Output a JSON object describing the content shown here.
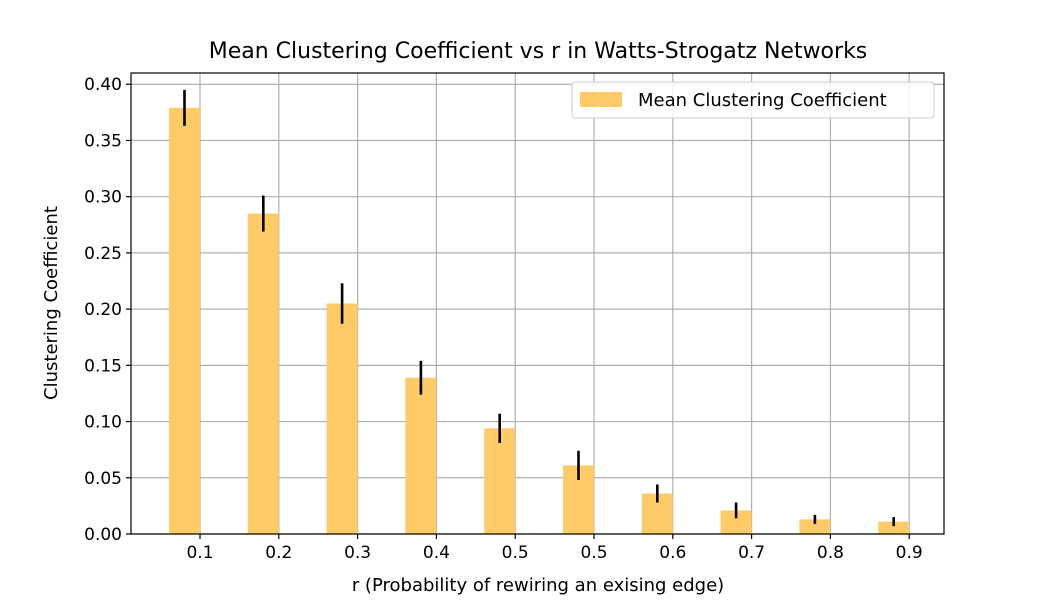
{
  "colors": {
    "bar": "#fecb66",
    "error_bar": "#000000",
    "grid": "#b0b0b0",
    "axis": "#000000",
    "legend_border": "#cccccc"
  },
  "chart_data": {
    "type": "bar",
    "title": "Mean Clustering Coefficient vs r in Watts-Strogatz Networks",
    "xlabel": "r (Probability of rewiring an exising edge)",
    "ylabel": "Clustering Coefficient",
    "categories": [
      "0.1",
      "0.2",
      "0.3",
      "0.4",
      "0.5",
      "0.5",
      "0.6",
      "0.7",
      "0.8",
      "0.9"
    ],
    "series": [
      {
        "name": "Mean Clustering Coefficient",
        "values": [
          0.379,
          0.285,
          0.205,
          0.139,
          0.094,
          0.061,
          0.036,
          0.021,
          0.013,
          0.011
        ],
        "errors": [
          0.016,
          0.016,
          0.018,
          0.015,
          0.013,
          0.013,
          0.008,
          0.007,
          0.004,
          0.004
        ]
      }
    ],
    "ylim": [
      0,
      0.41
    ],
    "yticks": [
      "0.00",
      "0.05",
      "0.10",
      "0.15",
      "0.20",
      "0.25",
      "0.30",
      "0.35",
      "0.40"
    ],
    "grid": true,
    "legend_position": "top-right"
  }
}
